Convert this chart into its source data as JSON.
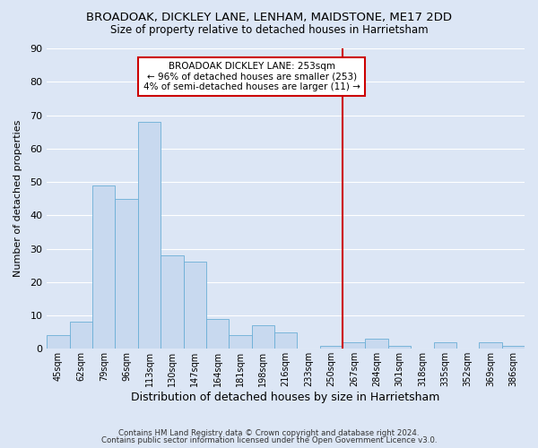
{
  "title": "BROADOAK, DICKLEY LANE, LENHAM, MAIDSTONE, ME17 2DD",
  "subtitle": "Size of property relative to detached houses in Harrietsham",
  "xlabel": "Distribution of detached houses by size in Harrietsham",
  "ylabel": "Number of detached properties",
  "bin_labels": [
    "45sqm",
    "62sqm",
    "79sqm",
    "96sqm",
    "113sqm",
    "130sqm",
    "147sqm",
    "164sqm",
    "181sqm",
    "198sqm",
    "216sqm",
    "233sqm",
    "250sqm",
    "267sqm",
    "284sqm",
    "301sqm",
    "318sqm",
    "335sqm",
    "352sqm",
    "369sqm",
    "386sqm"
  ],
  "bar_values": [
    4,
    8,
    49,
    45,
    68,
    28,
    26,
    9,
    4,
    7,
    5,
    0,
    1,
    2,
    3,
    1,
    0,
    2,
    0,
    2,
    1
  ],
  "bar_color": "#c8d9ef",
  "bar_edge_color": "#6baed6",
  "vline_x": 12.5,
  "vline_color": "#cc0000",
  "ylim": [
    0,
    90
  ],
  "yticks": [
    0,
    10,
    20,
    30,
    40,
    50,
    60,
    70,
    80,
    90
  ],
  "annotation_title": "BROADOAK DICKLEY LANE: 253sqm",
  "annotation_line1": "← 96% of detached houses are smaller (253)",
  "annotation_line2": "4% of semi-detached houses are larger (11) →",
  "annotation_box_color": "#ffffff",
  "annotation_box_edge": "#cc0000",
  "footer_line1": "Contains HM Land Registry data © Crown copyright and database right 2024.",
  "footer_line2": "Contains public sector information licensed under the Open Government Licence v3.0.",
  "background_color": "#dce6f5",
  "plot_background": "#dce6f5",
  "grid_color": "#ffffff"
}
